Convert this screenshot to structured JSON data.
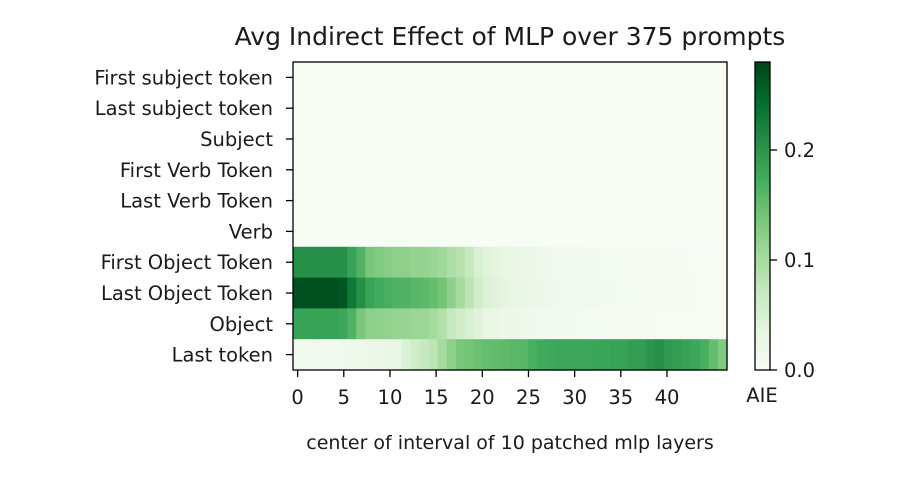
{
  "chart_data": {
    "type": "heatmap",
    "title": "Avg Indirect Effect of MLP over 375 prompts",
    "xlabel": "center of interval of 10 patched mlp layers",
    "ylabel": "",
    "colorbar_label": "AIE",
    "colormap": "Greens",
    "vmin": 0.0,
    "vmax": 0.28,
    "colorbar_ticks": [
      "0.0",
      "0.1",
      "0.2"
    ],
    "colorbar_tick_values": [
      0.0,
      0.1,
      0.2
    ],
    "x_ticks": [
      0,
      5,
      10,
      15,
      20,
      25,
      30,
      35,
      40
    ],
    "x_range": [
      0,
      47
    ],
    "rows": [
      "First subject token",
      "Last subject token",
      "Subject",
      "First Verb Token",
      "Last Verb Token",
      "Verb",
      "First Object Token",
      "Last Object Token",
      "Object",
      "Last token"
    ],
    "values": [
      [
        0,
        0,
        0,
        0,
        0,
        0,
        0,
        0,
        0,
        0,
        0,
        0,
        0,
        0,
        0,
        0,
        0,
        0,
        0,
        0,
        0,
        0,
        0,
        0,
        0,
        0,
        0,
        0,
        0,
        0,
        0,
        0,
        0,
        0,
        0,
        0,
        0,
        0,
        0,
        0,
        0,
        0,
        0,
        0,
        0,
        0,
        0,
        0
      ],
      [
        0,
        0,
        0,
        0,
        0,
        0,
        0,
        0,
        0,
        0,
        0,
        0,
        0,
        0,
        0,
        0,
        0,
        0,
        0,
        0,
        0,
        0,
        0,
        0,
        0,
        0,
        0,
        0,
        0,
        0,
        0,
        0,
        0,
        0,
        0,
        0,
        0,
        0,
        0,
        0,
        0,
        0,
        0,
        0,
        0,
        0,
        0,
        0
      ],
      [
        0,
        0,
        0,
        0,
        0,
        0,
        0,
        0,
        0,
        0,
        0,
        0,
        0,
        0,
        0,
        0,
        0,
        0,
        0,
        0,
        0,
        0,
        0,
        0,
        0,
        0,
        0,
        0,
        0,
        0,
        0,
        0,
        0,
        0,
        0,
        0,
        0,
        0,
        0,
        0,
        0,
        0,
        0,
        0,
        0,
        0,
        0,
        0
      ],
      [
        0,
        0,
        0,
        0,
        0,
        0,
        0,
        0,
        0,
        0,
        0,
        0,
        0,
        0,
        0,
        0,
        0,
        0,
        0,
        0,
        0,
        0,
        0,
        0,
        0,
        0,
        0,
        0,
        0,
        0,
        0,
        0,
        0,
        0,
        0,
        0,
        0,
        0,
        0,
        0,
        0,
        0,
        0,
        0,
        0,
        0,
        0,
        0
      ],
      [
        0,
        0,
        0,
        0,
        0,
        0,
        0,
        0,
        0,
        0,
        0,
        0,
        0,
        0,
        0,
        0,
        0,
        0,
        0,
        0,
        0,
        0,
        0,
        0,
        0,
        0,
        0,
        0,
        0,
        0,
        0,
        0,
        0,
        0,
        0,
        0,
        0,
        0,
        0,
        0,
        0,
        0,
        0,
        0,
        0,
        0,
        0,
        0
      ],
      [
        0,
        0,
        0,
        0,
        0,
        0,
        0,
        0,
        0,
        0,
        0,
        0,
        0,
        0,
        0,
        0,
        0,
        0,
        0,
        0,
        0,
        0,
        0,
        0,
        0,
        0,
        0,
        0,
        0,
        0,
        0,
        0,
        0,
        0,
        0,
        0,
        0,
        0,
        0,
        0,
        0,
        0,
        0,
        0,
        0,
        0,
        0,
        0
      ],
      [
        0.205,
        0.205,
        0.205,
        0.205,
        0.205,
        0.205,
        0.185,
        0.165,
        0.135,
        0.13,
        0.125,
        0.12,
        0.12,
        0.115,
        0.115,
        0.11,
        0.105,
        0.095,
        0.085,
        0.07,
        0.05,
        0.04,
        0.035,
        0.03,
        0.025,
        0.02,
        0.018,
        0.016,
        0.014,
        0.012,
        0.01,
        0.009,
        0.008,
        0.007,
        0.006,
        0.006,
        0.005,
        0.005,
        0.004,
        0.004,
        0.003,
        0.003,
        0.003,
        0.002,
        0.002,
        0.002,
        0.002,
        0.002
      ],
      [
        0.27,
        0.27,
        0.27,
        0.27,
        0.27,
        0.265,
        0.23,
        0.205,
        0.185,
        0.175,
        0.17,
        0.165,
        0.165,
        0.16,
        0.155,
        0.15,
        0.14,
        0.12,
        0.1,
        0.08,
        0.06,
        0.045,
        0.04,
        0.035,
        0.03,
        0.025,
        0.02,
        0.018,
        0.016,
        0.014,
        0.012,
        0.011,
        0.01,
        0.009,
        0.008,
        0.007,
        0.006,
        0.005,
        0.005,
        0.004,
        0.004,
        0.003,
        0.003,
        0.003,
        0.002,
        0.002,
        0.002,
        0.002
      ],
      [
        0.185,
        0.185,
        0.185,
        0.185,
        0.185,
        0.18,
        0.165,
        0.135,
        0.12,
        0.118,
        0.116,
        0.114,
        0.112,
        0.11,
        0.108,
        0.1,
        0.09,
        0.07,
        0.06,
        0.05,
        0.04,
        0.03,
        0.025,
        0.02,
        0.018,
        0.016,
        0.014,
        0.012,
        0.01,
        0.009,
        0.008,
        0.007,
        0.006,
        0.005,
        0.005,
        0.004,
        0.004,
        0.003,
        0.003,
        0.003,
        0.002,
        0.002,
        0.002,
        0.002,
        0.002,
        0.002,
        0.002,
        0.002
      ],
      [
        0.01,
        0.01,
        0.01,
        0.01,
        0.012,
        0.014,
        0.015,
        0.016,
        0.018,
        0.02,
        0.025,
        0.03,
        0.045,
        0.06,
        0.07,
        0.08,
        0.1,
        0.12,
        0.135,
        0.14,
        0.145,
        0.15,
        0.152,
        0.155,
        0.158,
        0.16,
        0.17,
        0.175,
        0.178,
        0.18,
        0.18,
        0.18,
        0.18,
        0.182,
        0.182,
        0.185,
        0.185,
        0.19,
        0.19,
        0.2,
        0.205,
        0.195,
        0.19,
        0.185,
        0.18,
        0.17,
        0.15,
        0.13
      ]
    ]
  }
}
